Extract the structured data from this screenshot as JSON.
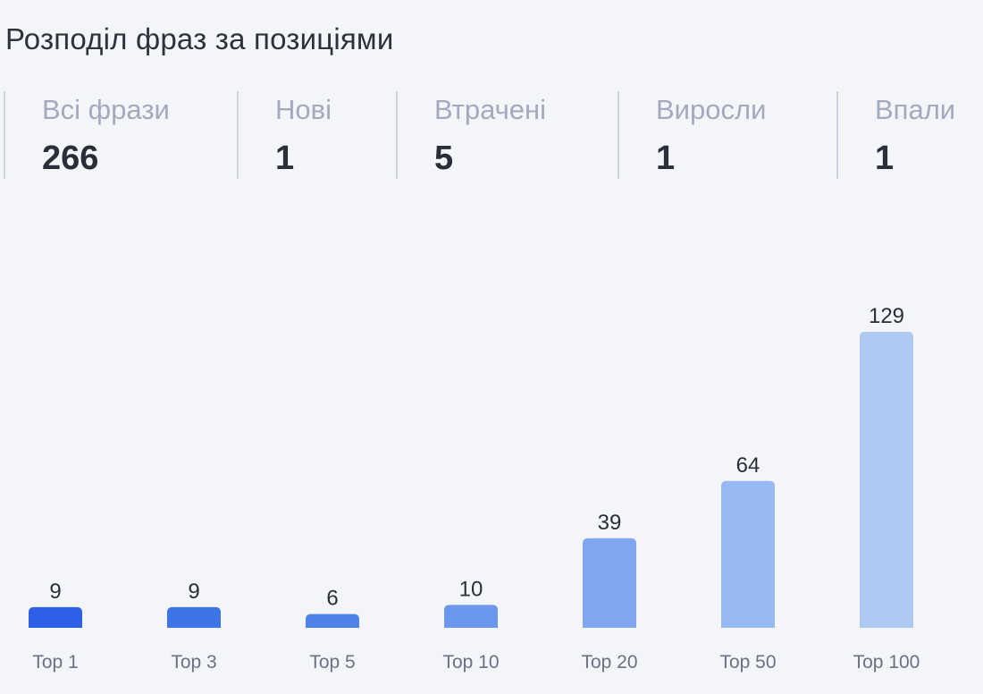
{
  "header": {
    "title": "Розподіл фраз за позиціями"
  },
  "stats": [
    {
      "label": "Всі фрази",
      "value": "266"
    },
    {
      "label": "Нові",
      "value": "1"
    },
    {
      "label": "Втрачені",
      "value": "5"
    },
    {
      "label": "Виросли",
      "value": "1"
    },
    {
      "label": "Впали",
      "value": "1"
    }
  ],
  "chart_data": {
    "type": "bar",
    "categories": [
      "Top 1",
      "Top 3",
      "Top 5",
      "Top 10",
      "Top 20",
      "Top 50",
      "Top 100"
    ],
    "values": [
      9,
      9,
      6,
      10,
      39,
      64,
      129
    ],
    "colors": [
      "#2d60e6",
      "#3d74e6",
      "#4d82e8",
      "#6b98ec",
      "#7fa6ee",
      "#97b8f0",
      "#aec9f3"
    ],
    "title": "",
    "xlabel": "",
    "ylabel": "",
    "ylim": [
      0,
      129
    ],
    "grid": false
  }
}
